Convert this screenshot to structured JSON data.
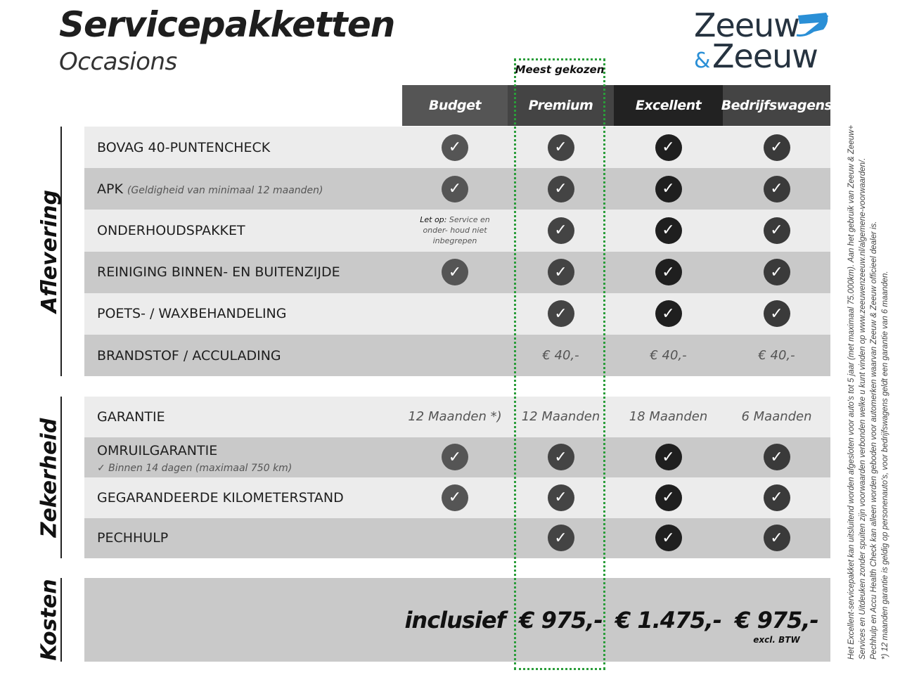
{
  "header": {
    "title": "Servicepakketten",
    "subtitle": "Occasions",
    "logo_text": "Zeeuw & Zeeuw",
    "most_chosen": "Meest gekozen"
  },
  "colors": {
    "accent_green": "#2a9d3a",
    "logo_blue": "#2a8fd6",
    "logo_dark": "#263340"
  },
  "columns": [
    {
      "label": "Budget",
      "bg": "#555555",
      "check_bg": "#555555"
    },
    {
      "label": "Premium",
      "bg": "#444444",
      "check_bg": "#444444"
    },
    {
      "label": "Excellent",
      "bg": "#222222",
      "check_bg": "#1f1f1f"
    },
    {
      "label": "Bedrijfswagens",
      "bg": "#444444",
      "check_bg": "#3a3a3a"
    }
  ],
  "sections": [
    {
      "label": "Aflevering",
      "rows": [
        {
          "label": "BOVAG 40-PUNTENCHECK",
          "cells": [
            "check",
            "check",
            "check",
            "check"
          ]
        },
        {
          "label": "APK",
          "sub": "(Geldigheid van minimaal 12 maanden)",
          "cells": [
            "check",
            "check",
            "check",
            "check"
          ]
        },
        {
          "label": "ONDERHOUDSPAKKET",
          "cells": [
            "note",
            "check",
            "check",
            "check"
          ],
          "note_bold": "Let op:",
          "note_text": "Service en onder- houd niet inbegrepen"
        },
        {
          "label": "REINIGING BINNEN- EN BUITENZIJDE",
          "cells": [
            "check",
            "check",
            "check",
            "check"
          ]
        },
        {
          "label": "POETS- / WAXBEHANDELING",
          "cells": [
            "",
            "check",
            "check",
            "check"
          ]
        },
        {
          "label": "BRANDSTOF / ACCULADING",
          "cells": [
            "",
            "€ 40,-",
            "€ 40,-",
            "€ 40,-"
          ]
        }
      ]
    },
    {
      "label": "Zekerheid",
      "rows": [
        {
          "label": "GARANTIE",
          "cells": [
            "12 Maanden *)",
            "12 Maanden",
            "18 Maanden",
            "6 Maanden"
          ]
        },
        {
          "label": "OMRUILGARANTIE",
          "sub2": "✓   Binnen 14 dagen (maximaal 750 km)",
          "cells": [
            "check",
            "check",
            "check",
            "check"
          ]
        },
        {
          "label": "GEGARANDEERDE KILOMETERSTAND",
          "cells": [
            "check",
            "check",
            "check",
            "check"
          ]
        },
        {
          "label": "PECHHULP",
          "cells": [
            "",
            "check",
            "check",
            "check"
          ]
        }
      ]
    },
    {
      "label": "Kosten",
      "prices": [
        "inclusief",
        "€ 975,-",
        "€ 1.475,-",
        "€ 975,-"
      ],
      "price_note": "excl. BTW"
    }
  ],
  "footnotes": [
    "Het Excellent-servicepakket kan uitsluitend worden afgesloten voor auto's tot 5 jaar (met maximaal 75.000km). Aan het gebruik van Zeeuw & Zeeuw+",
    "Services en Uitdeuken zonder spuiten zijn voorwaarden verbonden welke u kunt vinden op www.zeeuwenzeeuw.nl/algemene-voorwaarden/.",
    "Pechhulp en Accu Health Check kan alleen worden geboden voor automerken waarvan Zeeuw & Zeeuw officieel dealer is.",
    "*) 12 maanden garantie is geldig op personenauto's, voor bedrijfswagens geldt een garantie van 6 maanden."
  ]
}
